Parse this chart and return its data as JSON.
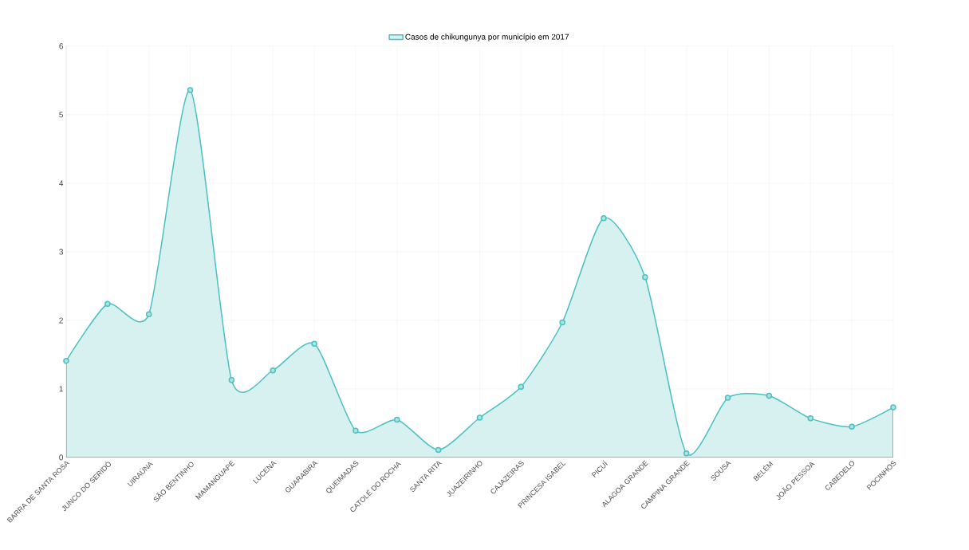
{
  "chart_data": {
    "type": "area",
    "categories": [
      "BARRA DE SANTA ROSA",
      "JUNCO DO SERIDÓ",
      "UIRAÚNA",
      "SÃO BENTINHO",
      "MAMANGUAPE",
      "LUCENA",
      "GUARABIRA",
      "QUEIMADAS",
      "CATOLÉ DO ROCHA",
      "SANTA RITA",
      "JUAZEIRINHO",
      "CAJAZEIRAS",
      "PRINCESA ISABEL",
      "PICUÍ",
      "ALAGOA GRANDE",
      "CAMPINA GRANDE",
      "SOUSA",
      "BELÉM",
      "JOÃO PESSOA",
      "CABEDELO",
      "POCINHOS"
    ],
    "series": [
      {
        "name": "Casos de chikungunya por município em 2017",
        "color": "#4bc0c0",
        "values": [
          1.41,
          2.24,
          2.09,
          5.36,
          1.13,
          1.27,
          1.66,
          0.39,
          0.55,
          0.11,
          0.58,
          1.03,
          1.97,
          3.49,
          2.63,
          0.06,
          0.87,
          0.9,
          0.57,
          0.45,
          0.73
        ]
      }
    ],
    "ylim": [
      0,
      6
    ],
    "yticks": [
      0,
      1,
      2,
      3,
      4,
      5,
      6
    ],
    "grid": true,
    "legend": "top",
    "marker": "circle",
    "line_style": "solid"
  }
}
